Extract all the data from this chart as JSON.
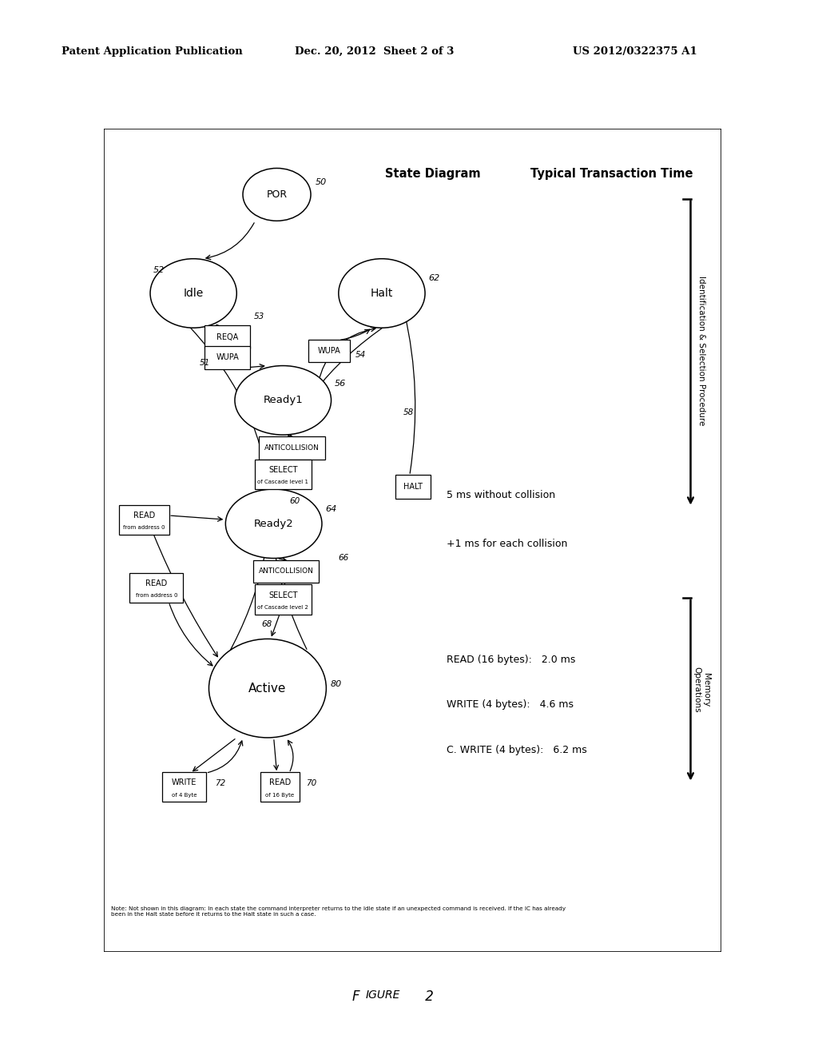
{
  "bg_color": "#ffffff",
  "header_left": "Patent Application Publication",
  "header_mid": "Dec. 20, 2012  Sheet 2 of 3",
  "header_right": "US 2012/0322375 A1",
  "figure_caption": "Figure 2",
  "note_text": "Note: Not shown in this diagram: In each state the command interpreter returns to the Idle state if an unexpected command is received. If the IC has already\nbeen in the Halt state before it returns to the Halt state in such a case.",
  "timing_title": "Typical Transaction Time",
  "state_diagram_title": "State Diagram",
  "id_label": "Identification & Selection Procedure",
  "mem_label": "Memory\nOperations",
  "timing_lines": [
    "5 ms without collision",
    "+1 ms for each collision",
    "READ (16 bytes):   2.0 ms",
    "WRITE (4 bytes):   4.6 ms",
    "C. WRITE (4 bytes):   6.2 ms"
  ]
}
